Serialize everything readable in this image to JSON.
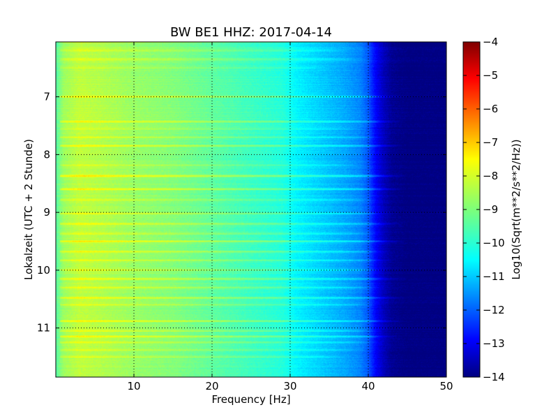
{
  "chart_data": {
    "type": "heatmap",
    "title": "BW BE1 HHZ: 2017-04-14",
    "xlabel": "Frequency [Hz]",
    "ylabel": "Lokalzeit (UTC + 2 Stunde)",
    "xlim": [
      0,
      50
    ],
    "ylim": [
      6.05,
      11.85
    ],
    "y_inverted": true,
    "x_ticks": [
      "10",
      "20",
      "30",
      "40",
      "50"
    ],
    "x_tick_values": [
      10,
      20,
      30,
      40,
      50
    ],
    "y_ticks": [
      "7",
      "8",
      "9",
      "10",
      "11"
    ],
    "y_tick_values": [
      7,
      8,
      9,
      10,
      11
    ],
    "grid": true,
    "colormap": "jet",
    "colorbar": {
      "label": "Log10(Sqrt(m**2/s**2/Hz))",
      "range": [
        -14,
        -4
      ],
      "ticks": [
        "−4",
        "−5",
        "−6",
        "−7",
        "−8",
        "−9",
        "−10",
        "−11",
        "−12",
        "−13",
        "−14"
      ],
      "tick_values": [
        -4,
        -5,
        -6,
        -7,
        -8,
        -9,
        -10,
        -11,
        -12,
        -13,
        -14
      ]
    },
    "spectrum_profile": {
      "frequency_hz": [
        0,
        1,
        3,
        6,
        10,
        15,
        20,
        25,
        29,
        31,
        33,
        35,
        37,
        39,
        40,
        41,
        42,
        43,
        45,
        50
      ],
      "value_log10": [
        -9.4,
        -8.7,
        -8.35,
        -8.5,
        -8.75,
        -8.95,
        -9.3,
        -9.65,
        -9.9,
        -10.35,
        -10.6,
        -10.85,
        -11.1,
        -11.45,
        -11.9,
        -12.8,
        -13.4,
        -13.8,
        -14.0,
        -14.0
      ]
    },
    "bright_bands": {
      "time_hours": [
        6.05,
        6.2,
        6.35,
        6.5,
        7.0,
        7.43,
        7.55,
        7.7,
        7.85,
        8.18,
        8.37,
        8.6,
        8.78,
        9.02,
        9.2,
        9.37,
        9.5,
        9.68,
        9.83,
        10.0,
        10.15,
        10.3,
        10.48,
        10.6,
        10.88,
        11.05,
        11.15,
        11.25,
        11.38,
        11.5
      ],
      "offset_log10": [
        0.5,
        0.4,
        0.5,
        0.4,
        0.85,
        0.95,
        0.5,
        0.55,
        0.85,
        0.45,
        1.05,
        0.95,
        0.55,
        0.6,
        0.75,
        0.6,
        0.95,
        0.7,
        0.75,
        0.7,
        0.75,
        0.6,
        0.7,
        0.6,
        0.9,
        0.65,
        0.95,
        0.6,
        0.5,
        0.5
      ],
      "max_frequency_hz": [
        40,
        38,
        40,
        36,
        45,
        45,
        40,
        43,
        45,
        40,
        45,
        45,
        42,
        43,
        45,
        42,
        45,
        43,
        44,
        43,
        45,
        42,
        45,
        42,
        45,
        42,
        44,
        42,
        40,
        38
      ]
    }
  }
}
